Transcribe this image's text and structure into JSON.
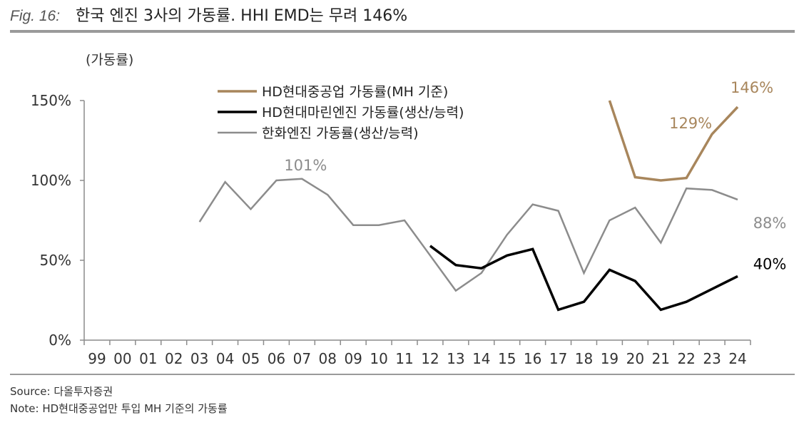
{
  "figure": {
    "label": "Fig. 16:",
    "title": "한국 엔진 3사의 가동률. HHI EMD는 무려 146%"
  },
  "footer": {
    "source": "Source: 다올투자증권",
    "note": "Note: HD현대중공업만 투입 MH 기준의 가동률"
  },
  "chart_data": {
    "type": "line",
    "ylabel": "(가동률)",
    "ylim": [
      0,
      150
    ],
    "yticks": [
      0,
      50,
      100,
      150
    ],
    "ytick_labels": [
      "0%",
      "50%",
      "100%",
      "150%"
    ],
    "categories": [
      "99",
      "00",
      "01",
      "02",
      "03",
      "04",
      "05",
      "06",
      "07",
      "08",
      "09",
      "10",
      "11",
      "12",
      "13",
      "14",
      "15",
      "16",
      "17",
      "18",
      "19",
      "20",
      "21",
      "22",
      "23",
      "24"
    ],
    "legend_position": "top-center",
    "series": [
      {
        "name": "HD현대중공업 가동률(MH 기준)",
        "color": "#a8865c",
        "width": 3.5,
        "values": [
          null,
          null,
          null,
          null,
          null,
          null,
          null,
          null,
          null,
          null,
          null,
          null,
          null,
          null,
          null,
          null,
          null,
          null,
          null,
          null,
          150,
          102,
          100,
          101.5,
          129,
          146
        ]
      },
      {
        "name": "HD현대마린엔진 가동률(생산/능력)",
        "color": "#000000",
        "width": 3.5,
        "values": [
          null,
          null,
          null,
          null,
          null,
          null,
          null,
          null,
          null,
          null,
          null,
          null,
          null,
          59,
          47,
          45,
          53,
          57,
          19,
          24,
          44,
          37,
          19,
          24,
          32,
          40
        ]
      },
      {
        "name": "한화엔진 가동률(생산/능력)",
        "color": "#8c8c8c",
        "width": 2.5,
        "values": [
          null,
          null,
          null,
          null,
          74,
          99,
          82,
          100,
          101,
          91,
          72,
          72,
          75,
          53,
          31,
          42,
          66,
          85,
          81,
          42,
          75,
          83,
          61,
          95,
          94,
          88
        ]
      }
    ],
    "annotations": [
      {
        "text": "146%",
        "series": 0,
        "index": 25,
        "color": "#a8865c"
      },
      {
        "text": "129%",
        "series": 0,
        "index": 24,
        "color": "#a8865c"
      },
      {
        "text": "101%",
        "series": 2,
        "index": 8,
        "color": "#8c8c8c"
      },
      {
        "text": "88%",
        "series": 2,
        "index": 25,
        "color": "#8c8c8c"
      },
      {
        "text": "40%",
        "series": 1,
        "index": 25,
        "color": "#000000"
      }
    ]
  }
}
